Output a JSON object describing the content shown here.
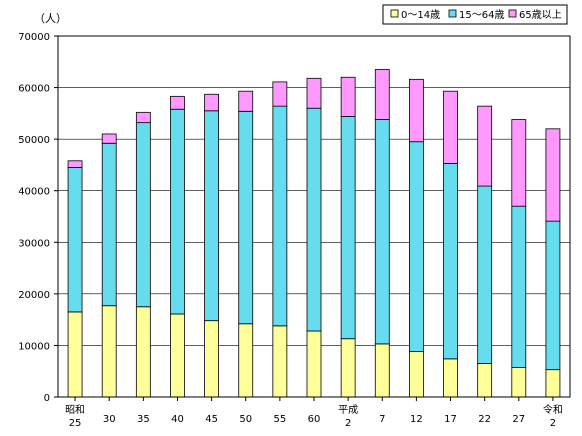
{
  "chart_data": {
    "type": "bar",
    "stacked": true,
    "y_unit": "（人）",
    "ylim": [
      0,
      70000
    ],
    "yticks": [
      "0",
      "10000",
      "20000",
      "30000",
      "40000",
      "50000",
      "60000",
      "70000"
    ],
    "categories": [
      [
        "昭和",
        "25"
      ],
      [
        "",
        "30"
      ],
      [
        "",
        "35"
      ],
      [
        "",
        "40"
      ],
      [
        "",
        "45"
      ],
      [
        "",
        "50"
      ],
      [
        "",
        "55"
      ],
      [
        "",
        "60"
      ],
      [
        "平成",
        "2"
      ],
      [
        "",
        "7"
      ],
      [
        "",
        "12"
      ],
      [
        "",
        "17"
      ],
      [
        "",
        "22"
      ],
      [
        "",
        "27"
      ],
      [
        "令和",
        "2"
      ]
    ],
    "series": [
      {
        "name": "0～14歳",
        "color": "#ffff99",
        "values": [
          16500,
          17700,
          17500,
          16100,
          14800,
          14200,
          13800,
          12800,
          11300,
          10300,
          8800,
          7400,
          6500,
          5700,
          5300
        ]
      },
      {
        "name": "15～64歳",
        "color": "#66ddee",
        "values": [
          28000,
          31500,
          35700,
          39700,
          40700,
          41200,
          42600,
          43200,
          43100,
          43500,
          40700,
          37900,
          34400,
          31300,
          28800
        ]
      },
      {
        "name": "65歳以上",
        "color": "#ff99ff",
        "values": [
          1300,
          1800,
          2000,
          2500,
          3200,
          3900,
          4700,
          5800,
          7600,
          9700,
          12100,
          14000,
          15500,
          16800,
          17900
        ]
      }
    ],
    "legend_position": "top-right",
    "grid": true
  }
}
